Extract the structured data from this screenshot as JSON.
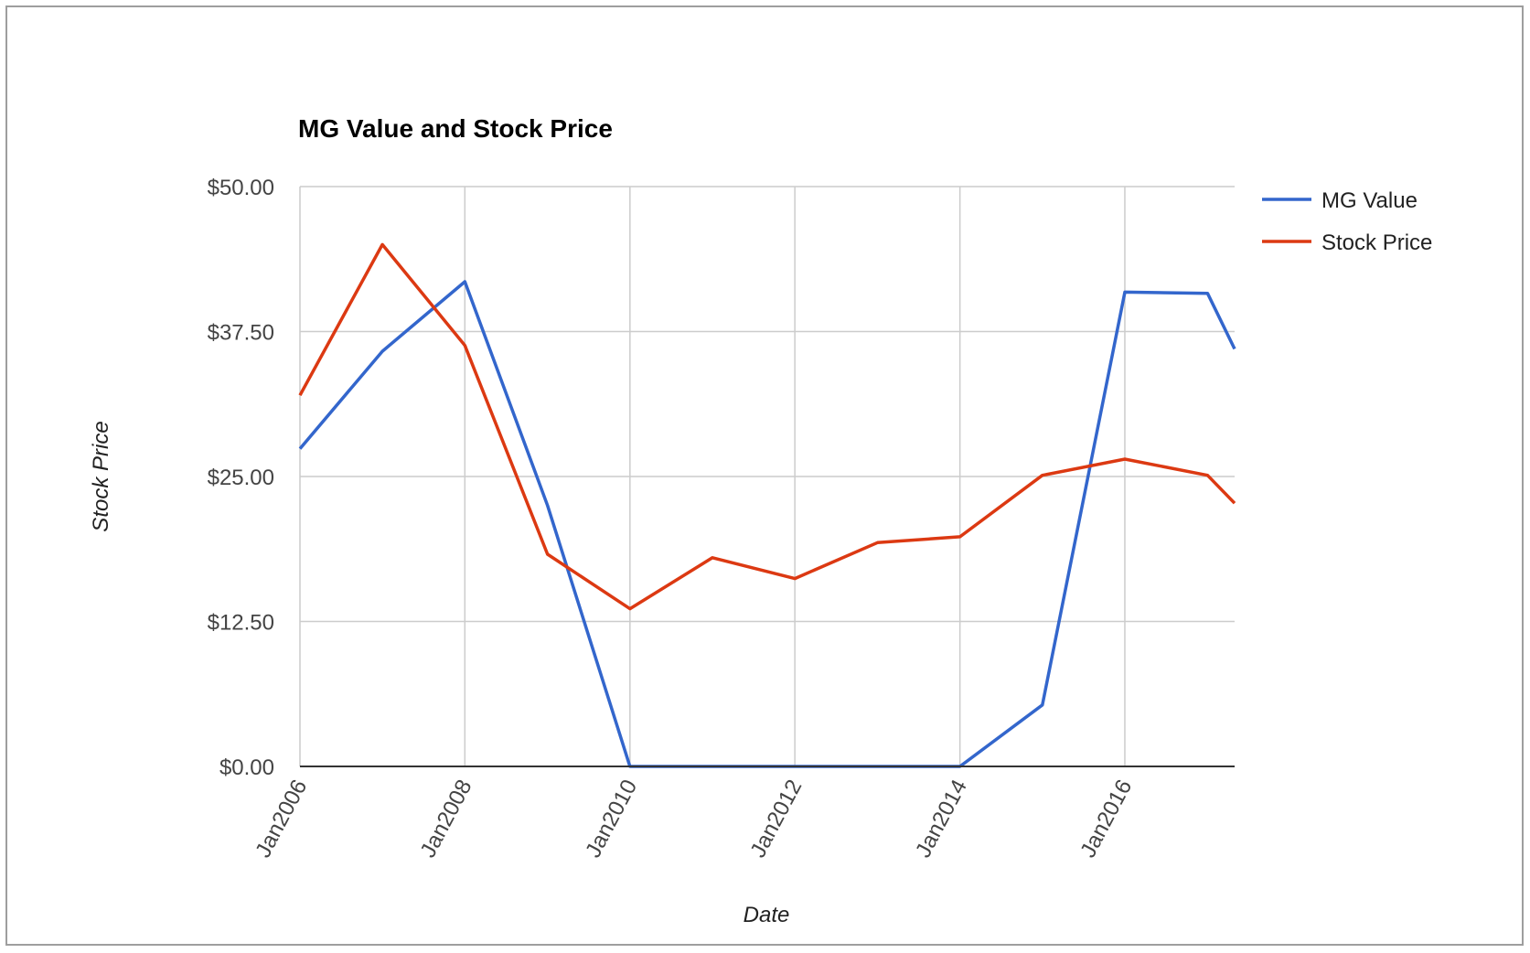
{
  "chart_data": {
    "type": "line",
    "title": "MG Value and Stock Price",
    "xlabel": "Date",
    "ylabel": "Stock Price",
    "x": [
      "2006-01-01",
      "2007-01-01",
      "2008-01-01",
      "2009-01-01",
      "2010-01-01",
      "2011-01-01",
      "2012-01-01",
      "2013-01-01",
      "2014-01-01",
      "2015-01-01",
      "2016-01-01",
      "2017-01-01",
      "2017-05-01"
    ],
    "x_tick_labels": [
      "Jan2006",
      "Jan2008",
      "Jan2010",
      "Jan2012",
      "Jan2014",
      "Jan2016"
    ],
    "x_ticks": [
      "2006-01-01",
      "2008-01-01",
      "2010-01-01",
      "2012-01-01",
      "2014-01-01",
      "2016-01-01"
    ],
    "y_tick_labels": [
      "$0.00",
      "$12.50",
      "$25.00",
      "$37.50",
      "$50.00"
    ],
    "y_ticks": [
      0,
      12.5,
      25,
      37.5,
      50
    ],
    "ylim": [
      0,
      50
    ],
    "xlim": [
      "2006-01-01",
      "2017-05-01"
    ],
    "grid": true,
    "legend_position": "right",
    "series": [
      {
        "name": "MG Value",
        "color": "#3366cc",
        "values": [
          27.4,
          35.8,
          41.8,
          22.5,
          0,
          0,
          0,
          0,
          0,
          5.3,
          40.9,
          40.8,
          36.0
        ]
      },
      {
        "name": "Stock Price",
        "color": "#dc3912",
        "values": [
          32.0,
          45.0,
          36.3,
          18.3,
          13.6,
          18.0,
          16.2,
          19.3,
          19.8,
          25.1,
          26.5,
          25.1,
          22.7
        ]
      }
    ]
  }
}
